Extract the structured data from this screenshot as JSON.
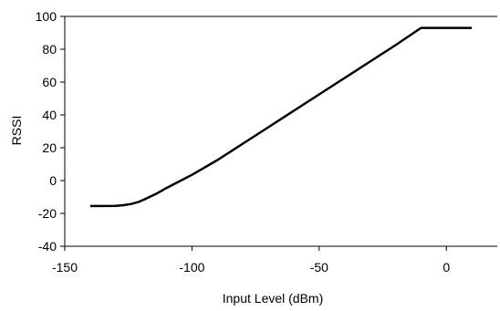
{
  "chart_data": {
    "type": "line",
    "title": "",
    "xlabel": "Input Level (dBm)",
    "ylabel": "RSSI",
    "xlim": [
      -150,
      20
    ],
    "ylim": [
      -40,
      100
    ],
    "xticks": [
      -150,
      -100,
      -50,
      0
    ],
    "yticks": [
      -40,
      -20,
      0,
      20,
      40,
      60,
      80,
      100
    ],
    "grid": false,
    "legend": "none",
    "series": [
      {
        "color": "#000000",
        "x": [
          -140,
          -135,
          -130,
          -127,
          -124,
          -121,
          -118,
          -114,
          -110,
          -105,
          -100,
          -90,
          -80,
          -70,
          -60,
          -50,
          -40,
          -30,
          -20,
          -10,
          10
        ],
        "y": [
          -15.5,
          -15.5,
          -15.4,
          -15,
          -14.3,
          -13,
          -11,
          -8,
          -4.5,
          -0.5,
          3.5,
          12.5,
          22.5,
          32.5,
          42.5,
          52.5,
          62.5,
          72.5,
          82.5,
          93,
          93
        ]
      }
    ]
  }
}
